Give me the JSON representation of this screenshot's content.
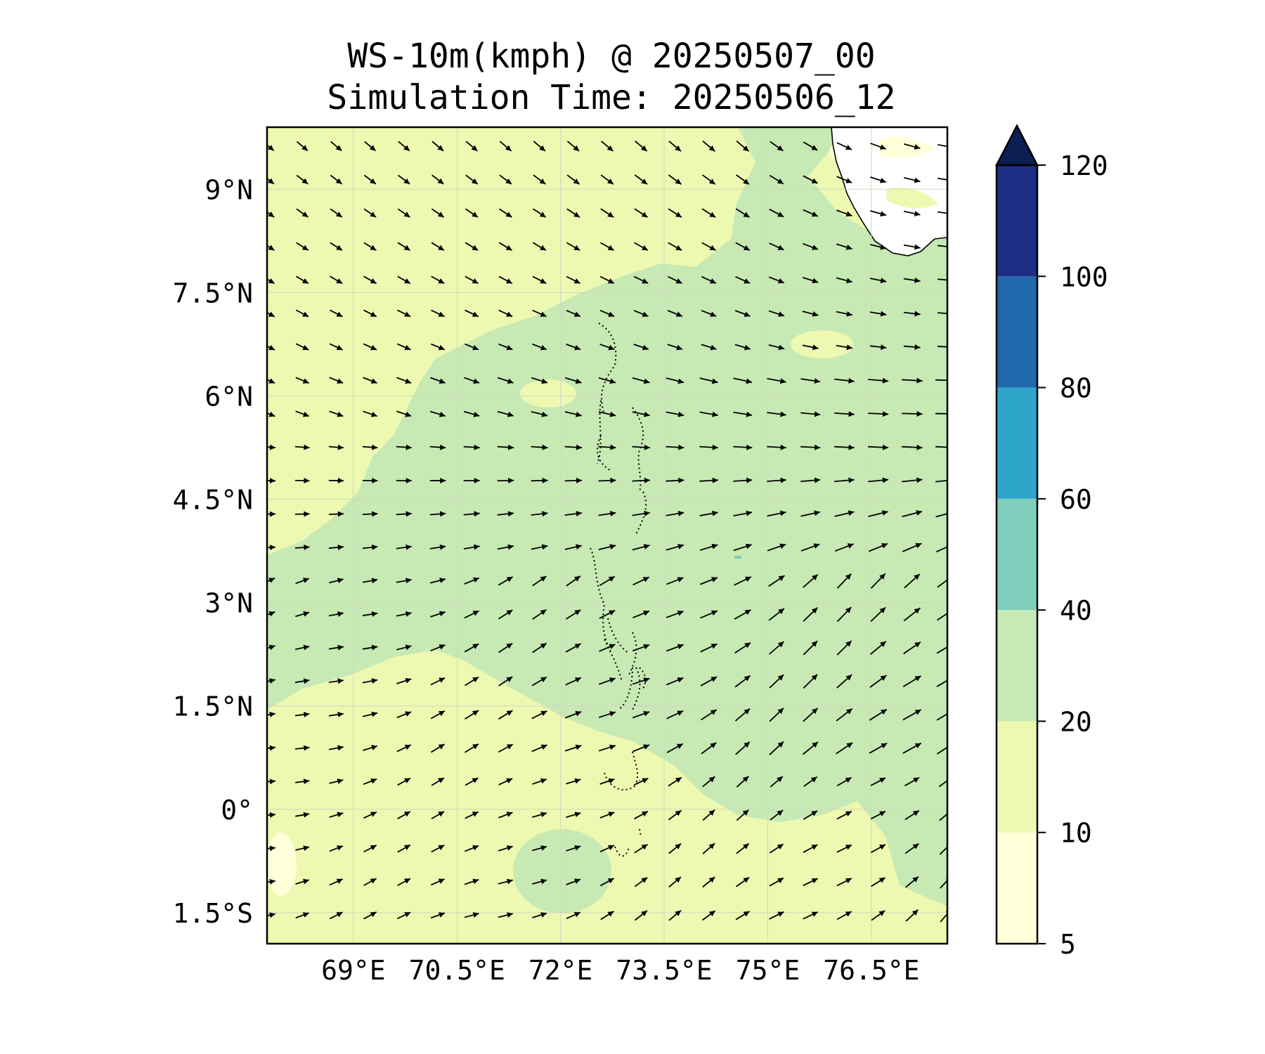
{
  "map": {
    "title": "WS-10m(kmph) @ 20250507_00",
    "subtitle": "Simulation Time: 20250506_12",
    "lon_range": [
      67.75,
      77.6
    ],
    "lat_range": [
      -1.95,
      9.9
    ],
    "lon_ticks": [
      {
        "value": 69,
        "label": "69°E"
      },
      {
        "value": 70.5,
        "label": "70.5°E"
      },
      {
        "value": 72,
        "label": "72°E"
      },
      {
        "value": 73.5,
        "label": "73.5°E"
      },
      {
        "value": 75,
        "label": "75°E"
      },
      {
        "value": 76.5,
        "label": "76.5°E"
      }
    ],
    "lat_ticks": [
      {
        "value": 9,
        "label": "9°N"
      },
      {
        "value": 7.5,
        "label": "7.5°N"
      },
      {
        "value": 6,
        "label": "6°N"
      },
      {
        "value": 4.5,
        "label": "4.5°N"
      },
      {
        "value": 3,
        "label": "3°N"
      },
      {
        "value": 1.5,
        "label": "1.5°N"
      },
      {
        "value": 0,
        "label": "0°"
      },
      {
        "value": -1.5,
        "label": "1.5°S"
      }
    ],
    "wind_field": "arrows blow SE in the north, E in the middle, NE in the south",
    "speed_regions": [
      {
        "range": "10-20",
        "where": "western and southern ocean"
      },
      {
        "range": "20-40",
        "where": "central and eastern ocean"
      },
      {
        "range": "5-10",
        "where": "land near top-right coast"
      }
    ]
  },
  "colorbar": {
    "levels": [
      5,
      10,
      20,
      40,
      60,
      80,
      100,
      120
    ],
    "labels": [
      "5",
      "10",
      "20",
      "40",
      "60",
      "80",
      "100",
      "120"
    ],
    "colors": [
      "#ffffd9",
      "#edf8b1",
      "#c7e9b4",
      "#7fcdbb",
      "#2fa5c9",
      "#2168ad",
      "#1e2e86",
      "#0b1f52"
    ],
    "extend": "max"
  }
}
